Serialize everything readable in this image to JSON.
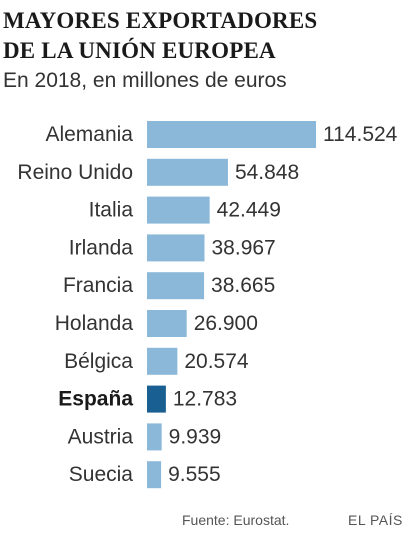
{
  "title_line1": "MAYORES EXPORTADORES",
  "title_line2": "DE LA UNIÓN EUROPEA",
  "subtitle": "En 2018, en millones de euros",
  "source": "Fuente: Eurostat.",
  "brand": "EL PAÍS",
  "chart_data": {
    "type": "bar",
    "orientation": "horizontal",
    "title": "MAYORES EXPORTADORES DE LA UNIÓN EUROPEA",
    "subtitle": "En 2018, en millones de euros",
    "categories": [
      "Alemania",
      "Reino Unido",
      "Italia",
      "Irlanda",
      "Francia",
      "Holanda",
      "Bélgica",
      "España",
      "Austria",
      "Suecia"
    ],
    "values": [
      114524,
      54848,
      42449,
      38967,
      38665,
      26900,
      20574,
      12783,
      9939,
      9555
    ],
    "value_labels": [
      "114.524",
      "54.848",
      "42.449",
      "38.967",
      "38.665",
      "26.900",
      "20.574",
      "12.783",
      "9.939",
      "9.555"
    ],
    "highlight": "España",
    "colors": {
      "bar": "#8bb8d8",
      "highlight_bar": "#1a5f91"
    },
    "xlim": [
      0,
      114524
    ],
    "grid": false,
    "legend": "none"
  }
}
